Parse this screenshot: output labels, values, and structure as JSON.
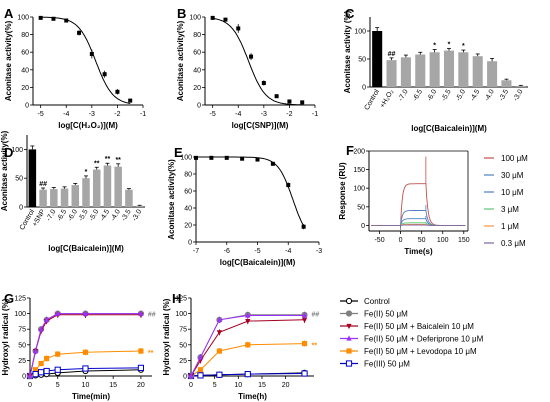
{
  "chart_data": [
    {
      "id": "A",
      "panel_label": "A",
      "type": "line",
      "xlabel": "log[C(H₂O₂)](M)",
      "ylabel": "Aconitase activity(%)",
      "xlim": [
        -5.3,
        -1
      ],
      "ylim": [
        0,
        100
      ],
      "xticks": [
        "-5",
        "-4",
        "-3",
        "-2",
        "-1"
      ],
      "xtick_values": [
        -5,
        -4,
        -3,
        -2,
        -1
      ],
      "yticks": [
        "0",
        "20",
        "40",
        "60",
        "80",
        "100"
      ],
      "ytick_values": [
        0,
        20,
        40,
        60,
        80,
        100
      ],
      "curve": {
        "top": 100,
        "bottom": 0,
        "logIC50": -2.85,
        "hill": -1.3
      },
      "points": [
        {
          "x": -5,
          "y": 99,
          "err": 1
        },
        {
          "x": -4.5,
          "y": 98,
          "err": 1
        },
        {
          "x": -4,
          "y": 96,
          "err": 2
        },
        {
          "x": -3.5,
          "y": 82,
          "err": 3
        },
        {
          "x": -3,
          "y": 58,
          "err": 5
        },
        {
          "x": -2.5,
          "y": 35,
          "err": 4
        },
        {
          "x": -2,
          "y": 15,
          "err": 3
        },
        {
          "x": -1.5,
          "y": 5,
          "err": 2
        }
      ]
    },
    {
      "id": "B",
      "panel_label": "B",
      "type": "line",
      "xlabel": "log[C(SNP)](M)",
      "ylabel": "Aconitase activity(%)",
      "xlim": [
        -5.3,
        -1
      ],
      "ylim": [
        0,
        100
      ],
      "xticks": [
        "-5",
        "-4",
        "-3",
        "-2",
        "-1"
      ],
      "xtick_values": [
        -5,
        -4,
        -3,
        -2,
        -1
      ],
      "yticks": [
        "0",
        "20",
        "40",
        "60",
        "80",
        "100"
      ],
      "ytick_values": [
        0,
        20,
        40,
        60,
        80,
        100
      ],
      "curve": {
        "top": 100,
        "bottom": 0,
        "logIC50": -3.6,
        "hill": -1.3
      },
      "points": [
        {
          "x": -5,
          "y": 99,
          "err": 1
        },
        {
          "x": -4.5,
          "y": 97,
          "err": 2
        },
        {
          "x": -4,
          "y": 87,
          "err": 5
        },
        {
          "x": -3.5,
          "y": 55,
          "err": 4
        },
        {
          "x": -3,
          "y": 25,
          "err": 3
        },
        {
          "x": -2.5,
          "y": 10,
          "err": 2
        },
        {
          "x": -2,
          "y": 4,
          "err": 1
        },
        {
          "x": -1.5,
          "y": 3,
          "err": 1
        }
      ]
    },
    {
      "id": "C",
      "panel_label": "C",
      "type": "bar",
      "xlabel": "log[C(Baicalein)](M)",
      "ylabel": "Aconitase activity (%)",
      "ylim": [
        0,
        125
      ],
      "yticks": [
        "0",
        "50",
        "100"
      ],
      "ytick_values": [
        0,
        50,
        100
      ],
      "categories": [
        "Control",
        "+H₂O₂",
        "-7.0",
        "-6.5",
        "-6.0",
        "-5.5",
        "-5.0",
        "-4.5",
        "-4.0",
        "-3.5",
        "-3.0"
      ],
      "values": [
        100,
        48,
        53,
        58,
        62,
        65,
        62,
        55,
        46,
        12,
        2
      ],
      "errors": [
        6,
        4,
        4,
        4,
        5,
        4,
        4,
        4,
        5,
        2,
        1
      ],
      "colors": [
        "#000000",
        "#a6a6a6",
        "#a6a6a6",
        "#a6a6a6",
        "#a6a6a6",
        "#a6a6a6",
        "#a6a6a6",
        "#a6a6a6",
        "#a6a6a6",
        "#a6a6a6",
        "#a6a6a6"
      ],
      "annotations": [
        "",
        "##",
        "",
        "",
        "*",
        "*",
        "*",
        "",
        "",
        "",
        ""
      ]
    },
    {
      "id": "D",
      "panel_label": "D",
      "type": "bar",
      "xlabel": "log[C(Baicalein)](M)",
      "ylabel": "Aconitase activity(%)",
      "ylim": [
        0,
        125
      ],
      "yticks": [
        "0",
        "50",
        "100"
      ],
      "ytick_values": [
        0,
        50,
        100
      ],
      "categories": [
        "Control",
        "+SNP",
        "-7.0",
        "-6.5",
        "-6.0",
        "-5.5",
        "-5.0",
        "-4.5",
        "-4.0",
        "-3.5",
        "-3.0"
      ],
      "values": [
        100,
        30,
        31,
        32,
        38,
        50,
        65,
        72,
        70,
        30,
        2
      ],
      "errors": [
        6,
        3,
        3,
        3,
        3,
        4,
        4,
        4,
        5,
        2,
        1
      ],
      "colors": [
        "#000000",
        "#a6a6a6",
        "#a6a6a6",
        "#a6a6a6",
        "#a6a6a6",
        "#a6a6a6",
        "#a6a6a6",
        "#a6a6a6",
        "#a6a6a6",
        "#a6a6a6",
        "#a6a6a6"
      ],
      "annotations": [
        "",
        "##",
        "",
        "",
        "",
        "*",
        "**",
        "**",
        "**",
        "",
        ""
      ]
    },
    {
      "id": "E",
      "panel_label": "E",
      "type": "line",
      "xlabel": "log[C(Baicalein)](M)",
      "ylabel": "Aconitase activity(%)",
      "xlim": [
        -7,
        -3
      ],
      "ylim": [
        0,
        100
      ],
      "xticks": [
        "-7",
        "-6",
        "-5",
        "-4",
        "-3"
      ],
      "xtick_values": [
        -7,
        -6,
        -5,
        -4,
        -3
      ],
      "yticks": [
        "0",
        "20",
        "40",
        "60",
        "80",
        "100"
      ],
      "ytick_values": [
        0,
        20,
        40,
        60,
        80,
        100
      ],
      "curve": {
        "top": 100,
        "bottom": 0,
        "logIC50": -3.85,
        "hill": -1.8
      },
      "points": [
        {
          "x": -7,
          "y": 99,
          "err": 1
        },
        {
          "x": -6.5,
          "y": 99,
          "err": 1
        },
        {
          "x": -6,
          "y": 99,
          "err": 1
        },
        {
          "x": -5.5,
          "y": 98,
          "err": 1
        },
        {
          "x": -5,
          "y": 97,
          "err": 1
        },
        {
          "x": -4.5,
          "y": 92,
          "err": 2
        },
        {
          "x": -4,
          "y": 67,
          "err": 3
        },
        {
          "x": -3.5,
          "y": 18,
          "err": 3
        }
      ]
    },
    {
      "id": "F",
      "panel_label": "F",
      "type": "line",
      "xlabel": "Time(s)",
      "ylabel": "Response (RU)",
      "xlim": [
        -75,
        160
      ],
      "ylim": [
        -15,
        200
      ],
      "xticks": [
        "-50",
        "0",
        "50",
        "100",
        "150"
      ],
      "xtick_values": [
        -50,
        0,
        50,
        100,
        150
      ],
      "yticks": [
        "0",
        "50",
        "100",
        "150",
        "200"
      ],
      "ytick_values": [
        0,
        50,
        100,
        150,
        200
      ],
      "legend": "right",
      "series": [
        {
          "name": "100 μM",
          "color": "#c0504d",
          "plateau": 112,
          "spike": 185
        },
        {
          "name": "30 μM",
          "color": "#4f81bd",
          "plateau": 40,
          "spike": 55
        },
        {
          "name": "10 μM",
          "color": "#4a7fc1",
          "plateau": 18,
          "spike": 25
        },
        {
          "name": "3 μM",
          "color": "#5cc67a",
          "plateau": 7,
          "spike": 10
        },
        {
          "name": "1 μM",
          "color": "#f79646",
          "plateau": 3,
          "spike": 4
        },
        {
          "name": "0.3 μM",
          "color": "#8064a2",
          "plateau": 1,
          "spike": 2
        }
      ]
    },
    {
      "id": "G",
      "panel_label": "G",
      "type": "line",
      "xlabel": "Time(min)",
      "ylabel": "Hydroxyl radical (%)",
      "xlim": [
        0,
        22
      ],
      "ylim": [
        0,
        125
      ],
      "xticks": [
        "0",
        "5",
        "10",
        "15",
        "20"
      ],
      "xtick_values": [
        0,
        5,
        10,
        15,
        20
      ],
      "yticks": [
        "0",
        "25",
        "50",
        "75",
        "100",
        "125"
      ],
      "ytick_values": [
        0,
        25,
        50,
        75,
        100,
        125
      ],
      "x": [
        0,
        1,
        2,
        3,
        5,
        10,
        20
      ],
      "series_values": [
        [
          0,
          1,
          2,
          3,
          5,
          8,
          10
        ],
        [
          0,
          40,
          75,
          90,
          100,
          100,
          100
        ],
        [
          0,
          40,
          72,
          88,
          98,
          98,
          98
        ],
        [
          0,
          40,
          75,
          90,
          100,
          100,
          100
        ],
        [
          0,
          10,
          20,
          28,
          35,
          38,
          40
        ],
        [
          0,
          3,
          6,
          8,
          10,
          12,
          13
        ]
      ],
      "sig_hash": "##",
      "sig_star": "**"
    },
    {
      "id": "H",
      "panel_label": "H",
      "type": "line",
      "xlabel": "Time(h)",
      "ylabel": "Hydroxyl radical (%)",
      "xlim": [
        0,
        26
      ],
      "ylim": [
        0,
        125
      ],
      "xticks": [
        "0",
        "5",
        "10",
        "15",
        "20"
      ],
      "xtick_values": [
        0,
        5,
        10,
        15,
        20
      ],
      "yticks": [
        "0",
        "25",
        "50",
        "75",
        "100",
        "125"
      ],
      "ytick_values": [
        0,
        25,
        50,
        75,
        100,
        125
      ],
      "x": [
        0,
        2,
        6,
        12,
        24
      ],
      "series_values": [
        [
          0,
          1,
          2,
          3,
          5
        ],
        [
          0,
          30,
          90,
          98,
          98
        ],
        [
          0,
          25,
          70,
          88,
          90
        ],
        [
          0,
          30,
          90,
          97,
          97
        ],
        [
          0,
          10,
          40,
          50,
          52
        ],
        [
          0,
          1,
          2,
          3,
          4
        ]
      ],
      "sig_hash": "##",
      "sig_star": "**"
    }
  ],
  "legend_GH": [
    {
      "name": "Control",
      "color": "#000000",
      "marker": "circle-open"
    },
    {
      "name": "Fe(II) 50  μM",
      "color": "#7f7f7f",
      "marker": "circle"
    },
    {
      "name": "Fe(II) 50 μM + Baicalein 10 μM",
      "color": "#a50021",
      "marker": "triangle-down"
    },
    {
      "name": "Fe(II) 50 μM + Deferiprone 10 μM",
      "color": "#9b30ff",
      "marker": "triangle-up"
    },
    {
      "name": "Fe(II) 50 μM + Levodopa 10 μM",
      "color": "#ff8c00",
      "marker": "square"
    },
    {
      "name": "Fe(III) 50  μM",
      "color": "#0000cc",
      "marker": "square-open"
    }
  ]
}
